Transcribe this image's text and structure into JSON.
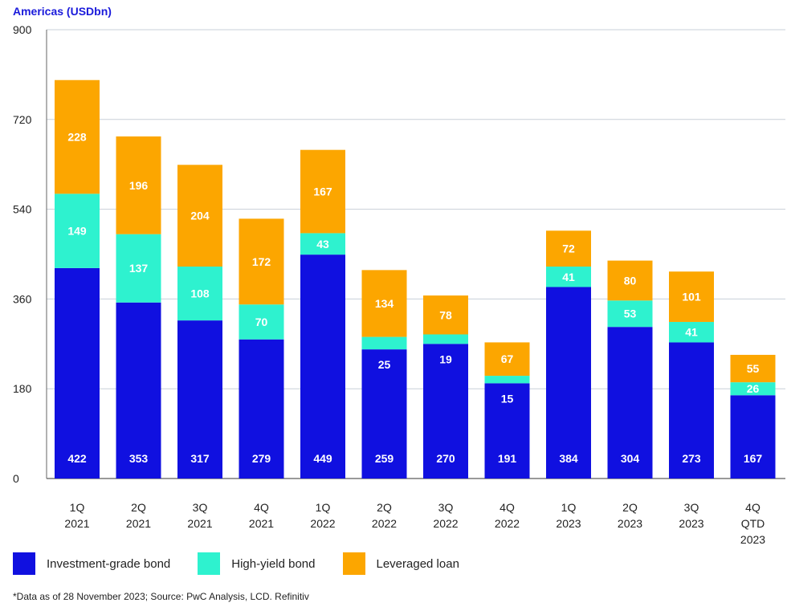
{
  "chart_data": {
    "type": "bar",
    "stacked": true,
    "title": "Americas (USDbn)",
    "categories": [
      [
        "1Q",
        "2021"
      ],
      [
        "2Q",
        "2021"
      ],
      [
        "3Q",
        "2021"
      ],
      [
        "4Q",
        "2021"
      ],
      [
        "1Q",
        "2022"
      ],
      [
        "2Q",
        "2022"
      ],
      [
        "3Q",
        "2022"
      ],
      [
        "4Q",
        "2022"
      ],
      [
        "1Q",
        "2023"
      ],
      [
        "2Q",
        "2023"
      ],
      [
        "3Q",
        "2023"
      ],
      [
        "4Q",
        "QTD",
        "2023"
      ]
    ],
    "series": [
      {
        "name": "Investment-grade bond",
        "color": "#1010e0",
        "values": [
          422,
          353,
          317,
          279,
          449,
          259,
          270,
          191,
          384,
          304,
          273,
          167
        ],
        "labels": [
          "422",
          "353",
          "317",
          "279",
          "449",
          "259",
          "270",
          "191",
          "384",
          "304",
          "273",
          "167"
        ]
      },
      {
        "name": "High-yield bond",
        "color": "#2ef2cf",
        "values": [
          149,
          137,
          108,
          70,
          43,
          25,
          19,
          15,
          41,
          53,
          41,
          26
        ],
        "labels": [
          "149",
          "137",
          "108",
          "70",
          "43",
          "",
          "",
          "",
          "41",
          "53",
          "41",
          "26"
        ],
        "outside_labels": [
          "",
          "",
          "",
          "",
          "",
          "25",
          "19",
          "15",
          "",
          "",
          "",
          ""
        ]
      },
      {
        "name": "Leveraged loan",
        "color": "#fca600",
        "values": [
          228,
          196,
          204,
          172,
          167,
          134,
          78,
          67,
          72,
          80,
          101,
          55
        ],
        "labels": [
          "228",
          "196",
          "204",
          "172",
          "167",
          "134",
          "78",
          "67",
          "72",
          "80",
          "101",
          "55"
        ]
      }
    ],
    "ylim": [
      0,
      900
    ],
    "yticks": [
      0,
      180,
      360,
      540,
      720,
      900
    ],
    "ytick_labels": [
      "0",
      "180",
      "360",
      "540",
      "720",
      "900"
    ],
    "grid": true,
    "legend": "bottom-left"
  },
  "colors": {
    "title": "#1a1adb",
    "grid": "#c8d0d8",
    "label_text": "#ffffff"
  },
  "footnote": "*Data as of 28 November 2023; Source: PwC Analysis, LCD. Refinitiv"
}
